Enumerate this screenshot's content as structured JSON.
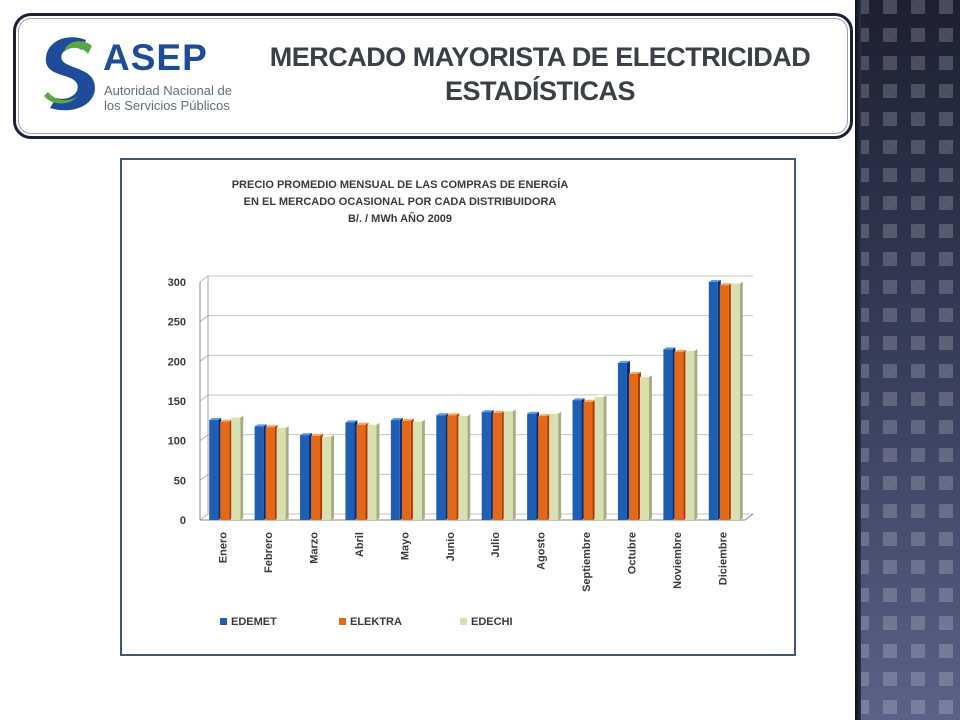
{
  "header": {
    "logo_word": "ASEP",
    "logo_sub_1": "Autoridad Nacional de",
    "logo_sub_2": "los Servicios Públicos",
    "title_line_1": "MERCADO MAYORISTA DE ELECTRICIDAD",
    "title_line_2": "ESTADÍSTICAS"
  },
  "colors": {
    "logo_blue": "#1e4b9a",
    "logo_green": "#5aa845",
    "edemet": "#1f5fb3",
    "elektra": "#e2691a",
    "edechi": "#d8dfb0"
  },
  "chart_data": {
    "type": "bar",
    "title_lines": [
      "PRECIO PROMEDIO  MENSUAL  DE LAS COMPRAS DE ENERGÍA",
      "EN EL MERCADO OCASIONAL POR  CADA  DISTRIBUIDORA",
      "B/.  /  MWh       AÑO  2009"
    ],
    "categories": [
      "Enero",
      "Febrero",
      "Marzo",
      "Abril",
      "Mayo",
      "Junio",
      "Julio",
      "Agosto",
      "Septiembre",
      "Octubre",
      "Noviembre",
      "Diciembre"
    ],
    "series": [
      {
        "name": "EDEMET",
        "color": "#1f5fb3",
        "values": [
          126,
          118,
          107,
          123,
          126,
          132,
          136,
          134,
          151,
          198,
          215,
          300
        ]
      },
      {
        "name": "ELEKTRA",
        "color": "#e2691a",
        "values": [
          124,
          117,
          106,
          120,
          125,
          132,
          135,
          131,
          149,
          184,
          212,
          296
        ]
      },
      {
        "name": "EDECHI",
        "color": "#d8dfb0",
        "values": [
          129,
          116,
          105,
          120,
          124,
          131,
          137,
          134,
          155,
          180,
          213,
          298
        ]
      }
    ],
    "yticks": [
      0,
      50,
      100,
      150,
      200,
      250,
      300
    ],
    "ylim": [
      0,
      300
    ],
    "grid": true,
    "legend_position": "bottom"
  }
}
